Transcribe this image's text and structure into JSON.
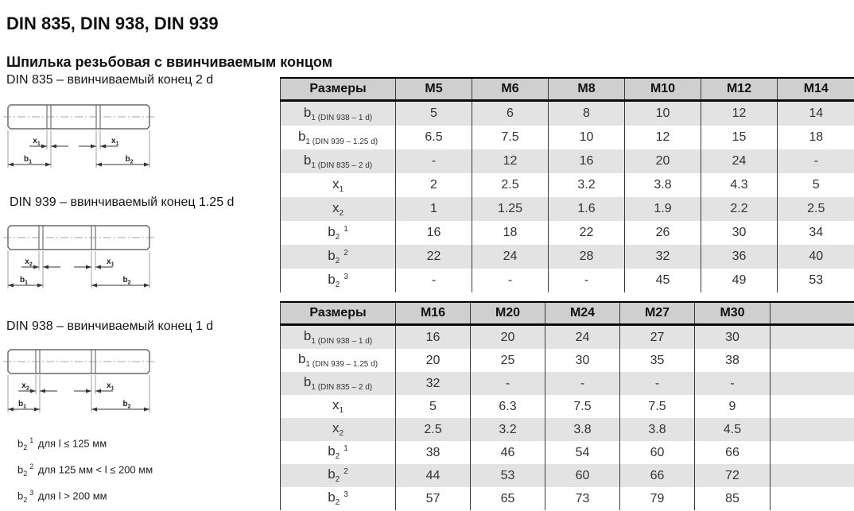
{
  "page": {
    "title": "DIN 835, DIN 938, DIN 939",
    "subtitle": "Шпилька резьбовая с ввинчиваемым концом"
  },
  "diagrams": [
    {
      "caption": "DIN 835 – ввинчиваемый конец 2 d",
      "labels": {
        "x_left": {
          "base": "x",
          "sub": "1"
        },
        "x_right": {
          "base": "x",
          "sub": "1"
        },
        "b_left": {
          "base": "b",
          "sub": "1"
        },
        "b_right": {
          "base": "b",
          "sub": "2"
        }
      }
    },
    {
      "caption": "DIN 939 – ввинчиваемый конец 1.25 d",
      "labels": {
        "x_left": {
          "base": "x",
          "sub": "2"
        },
        "x_right": {
          "base": "x",
          "sub": "1"
        },
        "b_left": {
          "base": "b",
          "sub": "1"
        },
        "b_right": {
          "base": "b",
          "sub": "2"
        }
      }
    },
    {
      "caption": "DIN 938 – ввинчиваемый конец 1 d",
      "labels": {
        "x_left": {
          "base": "x",
          "sub": "2"
        },
        "x_right": {
          "base": "x",
          "sub": "1"
        },
        "b_left": {
          "base": "b",
          "sub": "1"
        },
        "b_right": {
          "base": "b",
          "sub": "2"
        }
      }
    }
  ],
  "tables": [
    {
      "name": "din-table-m5-m14",
      "columns": [
        "Размеры",
        "M5",
        "M6",
        "M8",
        "M10",
        "M12",
        "M14"
      ],
      "rows": [
        {
          "label": {
            "base": "b",
            "sub": "1",
            "note": "(DIN 938 – 1 d)"
          },
          "values": [
            "5",
            "6",
            "8",
            "10",
            "12",
            "14"
          ]
        },
        {
          "label": {
            "base": "b",
            "sub": "1",
            "note": "(DIN 939 – 1.25 d)"
          },
          "values": [
            "6.5",
            "7.5",
            "10",
            "12",
            "15",
            "18"
          ]
        },
        {
          "label": {
            "base": "b",
            "sub": "1",
            "note": "(DIN 835 – 2 d)"
          },
          "values": [
            "-",
            "12",
            "16",
            "20",
            "24",
            "-"
          ]
        },
        {
          "label": {
            "base": "x",
            "sub": "1"
          },
          "values": [
            "2",
            "2.5",
            "3.2",
            "3.8",
            "4.3",
            "5"
          ]
        },
        {
          "label": {
            "base": "x",
            "sub": "2"
          },
          "values": [
            "1",
            "1.25",
            "1.6",
            "1.9",
            "2.2",
            "2.5"
          ]
        },
        {
          "label": {
            "base": "b",
            "sub": "2",
            "sup": "1"
          },
          "values": [
            "16",
            "18",
            "22",
            "26",
            "30",
            "34"
          ]
        },
        {
          "label": {
            "base": "b",
            "sub": "2",
            "sup": "2"
          },
          "values": [
            "22",
            "24",
            "28",
            "32",
            "36",
            "40"
          ]
        },
        {
          "label": {
            "base": "b",
            "sub": "2",
            "sup": "3"
          },
          "values": [
            "-",
            "-",
            "-",
            "45",
            "49",
            "53"
          ]
        }
      ]
    },
    {
      "name": "din-table-m16-m30",
      "columns": [
        "Размеры",
        "M16",
        "M20",
        "M24",
        "M27",
        "M30",
        ""
      ],
      "rows": [
        {
          "label": {
            "base": "b",
            "sub": "1",
            "note": "(DIN 938 – 1 d)"
          },
          "values": [
            "16",
            "20",
            "24",
            "27",
            "30",
            ""
          ]
        },
        {
          "label": {
            "base": "b",
            "sub": "1",
            "note": "(DIN 939 – 1.25 d)"
          },
          "values": [
            "20",
            "25",
            "30",
            "35",
            "38",
            ""
          ]
        },
        {
          "label": {
            "base": "b",
            "sub": "1",
            "note": "(DIN 835 – 2 d)"
          },
          "values": [
            "32",
            "-",
            "-",
            "-",
            "-",
            ""
          ]
        },
        {
          "label": {
            "base": "x",
            "sub": "1"
          },
          "values": [
            "5",
            "6.3",
            "7.5",
            "7.5",
            "9",
            ""
          ]
        },
        {
          "label": {
            "base": "x",
            "sub": "2"
          },
          "values": [
            "2.5",
            "3.2",
            "3.8",
            "3.8",
            "4.5",
            ""
          ]
        },
        {
          "label": {
            "base": "b",
            "sub": "2",
            "sup": "1"
          },
          "values": [
            "38",
            "46",
            "54",
            "60",
            "66",
            ""
          ]
        },
        {
          "label": {
            "base": "b",
            "sub": "2",
            "sup": "2"
          },
          "values": [
            "44",
            "53",
            "60",
            "66",
            "72",
            ""
          ]
        },
        {
          "label": {
            "base": "b",
            "sub": "2",
            "sup": "3"
          },
          "values": [
            "57",
            "65",
            "73",
            "79",
            "85",
            ""
          ]
        }
      ]
    }
  ],
  "footnotes": [
    {
      "base": "b",
      "sub": "2",
      "sup": "1",
      "text": "для l ≤ 125 мм"
    },
    {
      "base": "b",
      "sub": "2",
      "sup": "2",
      "text": "для 125 мм < l ≤ 200 мм"
    },
    {
      "base": "b",
      "sub": "2",
      "sup": "3",
      "text": "для l > 200 мм"
    }
  ],
  "colors": {
    "header_bg": "#cfcfcf",
    "row_shaded_bg": "#e3e3e3",
    "border": "#3a3a3a",
    "text": "#333333"
  }
}
